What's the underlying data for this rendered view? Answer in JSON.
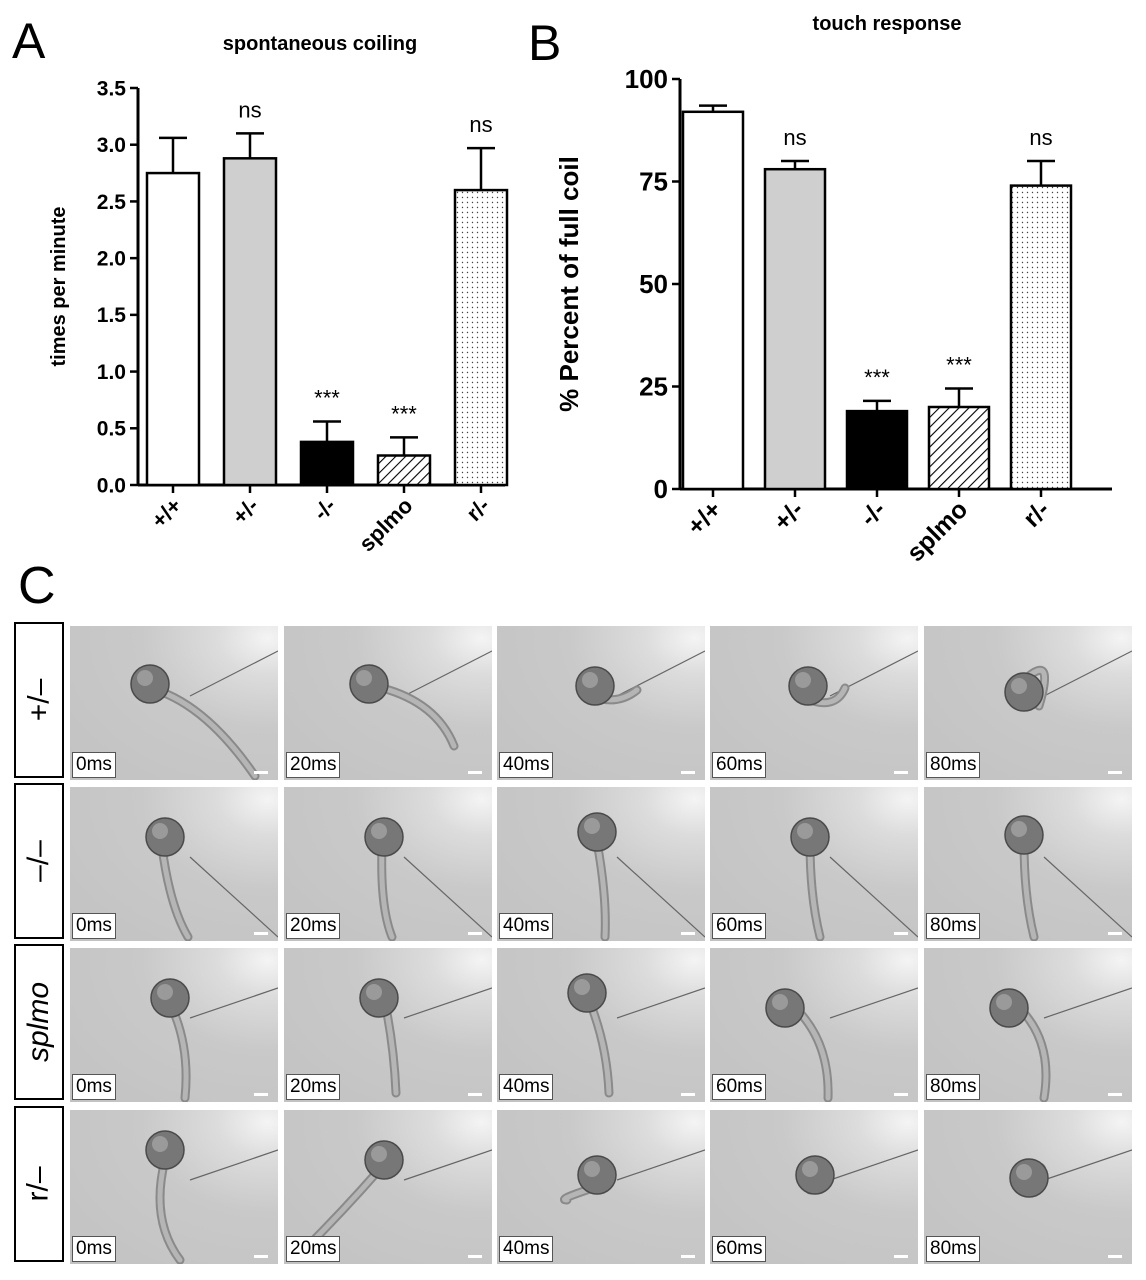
{
  "chart_data": [
    {
      "panel": "A",
      "type": "bar",
      "title": "spontaneous coiling",
      "ylabel": "times per minute",
      "xlabel": "",
      "ylim": [
        0,
        3.5
      ],
      "yticks": [
        "0.0",
        "0.5",
        "1.0",
        "1.5",
        "2.0",
        "2.5",
        "3.0",
        "3.5"
      ],
      "categories": [
        "+/+",
        "+/-",
        "-/-",
        "splmo",
        "r/-"
      ],
      "values": [
        2.75,
        2.88,
        0.38,
        0.26,
        2.6
      ],
      "errors": [
        0.31,
        0.22,
        0.18,
        0.16,
        0.37
      ],
      "annotations": [
        "",
        "ns",
        "***",
        "***",
        "ns"
      ],
      "fills": [
        "white",
        "grey",
        "black",
        "hatched",
        "dotted"
      ],
      "grid": false
    },
    {
      "panel": "B",
      "type": "bar",
      "title": "touch response",
      "ylabel": "% Percent of full coil",
      "xlabel": "",
      "ylim": [
        0,
        100
      ],
      "yticks": [
        "0",
        "25",
        "50",
        "75",
        "100"
      ],
      "categories": [
        "+/+",
        "+/-",
        "-/-",
        "splmo",
        "r/-"
      ],
      "values": [
        92,
        78,
        19,
        20,
        74
      ],
      "errors": [
        1.5,
        2,
        2.5,
        4.5,
        6
      ],
      "annotations": [
        "",
        "ns",
        "***",
        "***",
        "ns"
      ],
      "fills": [
        "white",
        "grey",
        "black",
        "hatched",
        "dotted"
      ],
      "grid": false
    }
  ],
  "panel_c": {
    "letter": "C",
    "rows": [
      {
        "label": "+/–",
        "italic": false,
        "times": [
          "0ms",
          "20ms",
          "40ms",
          "60ms",
          "80ms"
        ]
      },
      {
        "label": "–/–",
        "italic": false,
        "times": [
          "0ms",
          "20ms",
          "40ms",
          "60ms",
          "80ms"
        ]
      },
      {
        "label": "splmo",
        "italic": true,
        "times": [
          "0ms",
          "20ms",
          "40ms",
          "60ms",
          "80ms"
        ]
      },
      {
        "label": "r/–",
        "italic": false,
        "times": [
          "0ms",
          "20ms",
          "40ms",
          "60ms",
          "80ms"
        ]
      }
    ]
  },
  "colors": {
    "grey_bar": "#cfcfcf",
    "black_bar": "#000000",
    "frame_bg": "#c6c6c6"
  }
}
